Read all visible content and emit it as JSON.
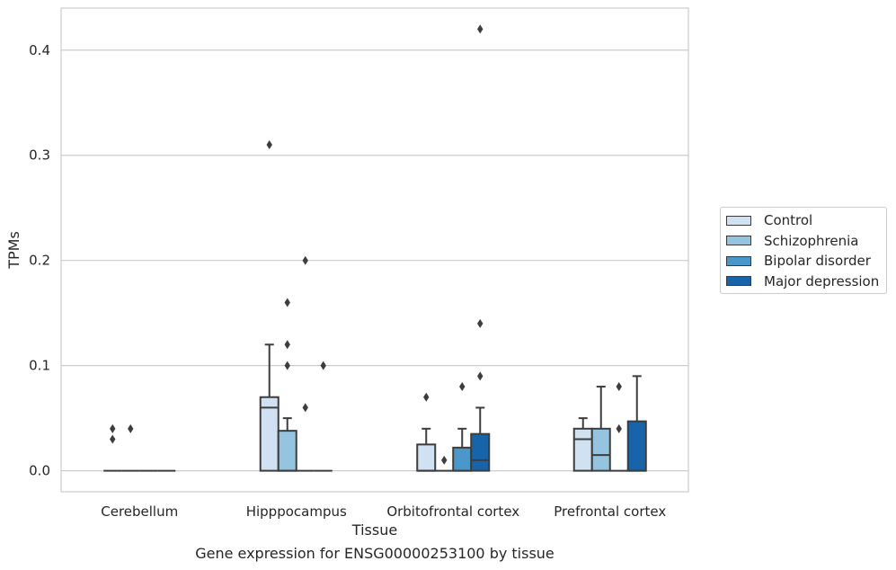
{
  "chart_data": {
    "type": "box",
    "title": "",
    "xlabel": "Tissue",
    "ylabel": "TPMs",
    "caption": "Gene expression for ENSG00000253100 by tissue",
    "ylim": [
      -0.02,
      0.44
    ],
    "yticks": [
      0.0,
      0.1,
      0.2,
      0.3,
      0.4
    ],
    "ytick_labels": [
      "0.0",
      "0.1",
      "0.2",
      "0.3",
      "0.4"
    ],
    "grid": "horizontal",
    "legend_position": "right",
    "categories": [
      "Cerebellum",
      "Hipppocampus",
      "Orbitofrontal cortex",
      "Prefrontal cortex"
    ],
    "series": [
      {
        "name": "Control",
        "color": "#d0e1f2",
        "boxes": [
          {
            "q1": 0,
            "median": 0,
            "q3": 0,
            "whislo": 0,
            "whishi": 0,
            "fliers": [
              0.03,
              0.04
            ]
          },
          {
            "q1": 0,
            "median": 0.06,
            "q3": 0.07,
            "whislo": 0,
            "whishi": 0.12,
            "fliers": [
              0.31
            ]
          },
          {
            "q1": 0,
            "median": 0,
            "q3": 0.025,
            "whislo": 0,
            "whishi": 0.04,
            "fliers": [
              0.07
            ]
          },
          {
            "q1": 0,
            "median": 0.03,
            "q3": 0.04,
            "whislo": 0,
            "whishi": 0.05,
            "fliers": []
          }
        ]
      },
      {
        "name": "Schizophrenia",
        "color": "#94c4df",
        "boxes": [
          {
            "q1": 0,
            "median": 0,
            "q3": 0,
            "whislo": 0,
            "whishi": 0,
            "fliers": [
              0.04
            ]
          },
          {
            "q1": 0,
            "median": 0,
            "q3": 0.038,
            "whislo": 0,
            "whishi": 0.05,
            "fliers": [
              0.1,
              0.12,
              0.16
            ]
          },
          {
            "q1": 0,
            "median": 0,
            "q3": 0,
            "whislo": 0,
            "whishi": 0,
            "fliers": [
              0.01
            ]
          },
          {
            "q1": 0,
            "median": 0.015,
            "q3": 0.04,
            "whislo": 0,
            "whishi": 0.08,
            "fliers": []
          }
        ]
      },
      {
        "name": "Bipolar disorder",
        "color": "#4a98c9",
        "boxes": [
          {
            "q1": 0,
            "median": 0,
            "q3": 0,
            "whislo": 0,
            "whishi": 0,
            "fliers": []
          },
          {
            "q1": 0,
            "median": 0,
            "q3": 0,
            "whislo": 0,
            "whishi": 0,
            "fliers": [
              0.06,
              0.2
            ]
          },
          {
            "q1": 0,
            "median": 0,
            "q3": 0.022,
            "whislo": 0,
            "whishi": 0.04,
            "fliers": [
              0.08
            ]
          },
          {
            "q1": 0,
            "median": 0,
            "q3": 0,
            "whislo": 0,
            "whishi": 0,
            "fliers": [
              0.04,
              0.08
            ]
          }
        ]
      },
      {
        "name": "Major depression",
        "color": "#1764ab",
        "boxes": [
          {
            "q1": 0,
            "median": 0,
            "q3": 0,
            "whislo": 0,
            "whishi": 0,
            "fliers": []
          },
          {
            "q1": 0,
            "median": 0,
            "q3": 0,
            "whislo": 0,
            "whishi": 0,
            "fliers": [
              0.1
            ]
          },
          {
            "q1": 0,
            "median": 0.01,
            "q3": 0.035,
            "whislo": 0,
            "whishi": 0.06,
            "fliers": [
              0.09,
              0.14,
              0.42
            ]
          },
          {
            "q1": 0,
            "median": 0,
            "q3": 0.047,
            "whislo": 0,
            "whishi": 0.09,
            "fliers": []
          }
        ]
      }
    ]
  }
}
